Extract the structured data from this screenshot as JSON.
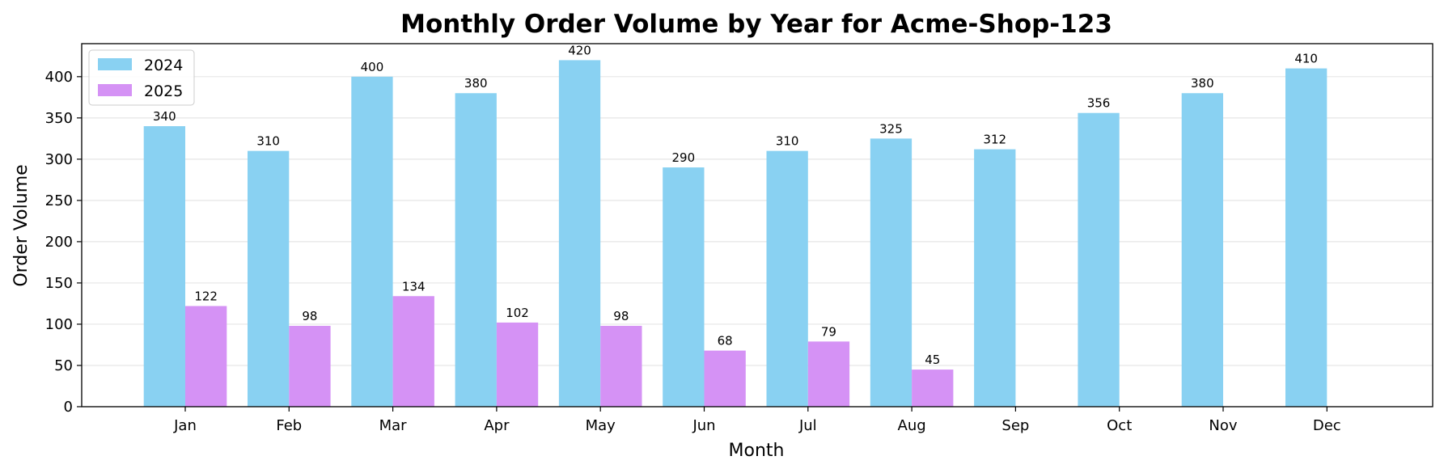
{
  "chart_data": {
    "type": "bar",
    "title": "Monthly Order Volume by Year for Acme-Shop-123",
    "xlabel": "Month",
    "ylabel": "Order Volume",
    "ylim": [
      0,
      440
    ],
    "yticks": [
      0,
      50,
      100,
      150,
      200,
      250,
      300,
      350,
      400
    ],
    "grid": "horizontal",
    "legend_position": "top-left",
    "categories": [
      "Jan",
      "Feb",
      "Mar",
      "Apr",
      "May",
      "Jun",
      "Jul",
      "Aug",
      "Sep",
      "Oct",
      "Nov",
      "Dec"
    ],
    "series": [
      {
        "name": "2024",
        "color": "#89D1F2",
        "values": [
          340,
          310,
          400,
          380,
          420,
          290,
          310,
          325,
          312,
          356,
          380,
          410
        ]
      },
      {
        "name": "2025",
        "color": "#D592F5",
        "values": [
          122,
          98,
          134,
          102,
          98,
          68,
          79,
          45,
          null,
          null,
          null,
          null
        ]
      }
    ]
  }
}
